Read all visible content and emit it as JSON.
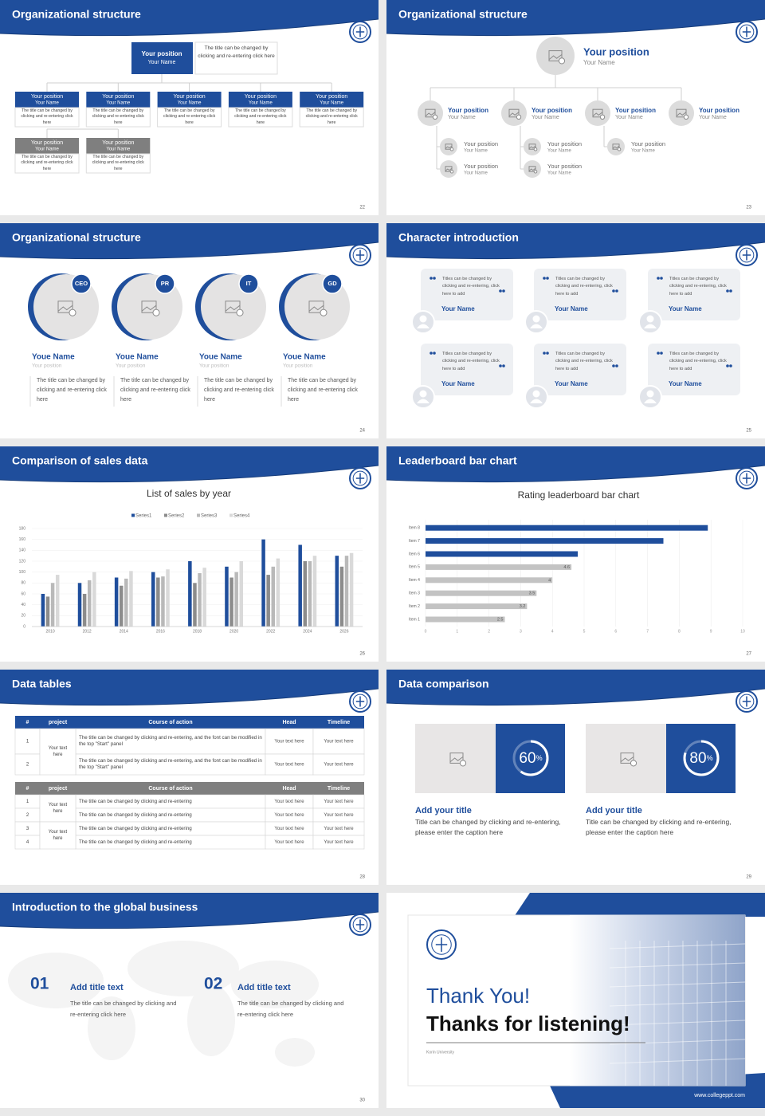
{
  "slides": [
    {
      "title": "Organizational structure",
      "page": "22",
      "top": {
        "position": "Your position",
        "name": "Your Name",
        "note": "The title can be changed by clicking and re-entering click here"
      },
      "row1": [
        {
          "position": "Your position",
          "name": "Your Name",
          "text": "The title can be changed by clicking and re-entering click here"
        },
        {
          "position": "Your position",
          "name": "Your Name",
          "text": "The title can be changed by clicking and re-entering click here"
        },
        {
          "position": "Your position",
          "name": "Your Name",
          "text": "The title can be changed by clicking and re-entering click here"
        },
        {
          "position": "Your position",
          "name": "Your Name",
          "text": "The title can be changed by clicking and re-entering click here"
        },
        {
          "position": "Your position",
          "name": "Your Name",
          "text": "The title can be changed by clicking and re-entering click here"
        }
      ],
      "row2": [
        {
          "position": "Your position",
          "name": "Your Name",
          "text": "The title can be changed by clicking and re-entering click here"
        },
        {
          "position": "Your position",
          "name": "Your Name",
          "text": "The title can be changed by clicking and re-entering click here"
        }
      ]
    },
    {
      "title": "Organizational structure",
      "page": "23",
      "top": {
        "position": "Your position",
        "name": "Your Name"
      },
      "level2": [
        {
          "position": "Your position",
          "name": "Your Name"
        },
        {
          "position": "Your position",
          "name": "Your Name"
        },
        {
          "position": "Your position",
          "name": "Your Name"
        },
        {
          "position": "Your position",
          "name": "Your Name"
        }
      ],
      "level3": [
        {
          "position": "Your position",
          "name": "Your Name"
        },
        {
          "position": "Your position",
          "name": "Your Name"
        },
        {
          "position": "Your position",
          "name": "Your Name"
        },
        {
          "position": "Your position",
          "name": "Your Name"
        },
        {
          "position": "Your position",
          "name": "Your Name"
        }
      ]
    },
    {
      "title": "Organizational structure",
      "page": "24",
      "people": [
        {
          "badge": "CEO",
          "name": "Youe Name",
          "position": "Your position",
          "text": "The title can be changed by clicking and re-entering click here"
        },
        {
          "badge": "PR",
          "name": "Youe Name",
          "position": "Your position",
          "text": "The title can be changed by clicking and re-entering click here"
        },
        {
          "badge": "IT",
          "name": "Youe Name",
          "position": "Your position",
          "text": "The title can be changed by clicking and re-entering click here"
        },
        {
          "badge": "GD",
          "name": "Youe Name",
          "position": "Your position",
          "text": "The title can be changed by clicking and re-entering click here"
        }
      ]
    },
    {
      "title": "Character introduction",
      "page": "25",
      "cards": [
        {
          "quote": "Titles can be changed by clicking and re-entering, click here to add",
          "name": "Your Name"
        },
        {
          "quote": "Titles can be changed by clicking and re-entering, click here to add",
          "name": "Your Name"
        },
        {
          "quote": "Titles can be changed by clicking and re-entering, click here to add",
          "name": "Your Name"
        },
        {
          "quote": "Titles can be changed by clicking and re-entering, click here to add",
          "name": "Your Name"
        },
        {
          "quote": "Titles can be changed by clicking and re-entering, click here to add",
          "name": "Your Name"
        },
        {
          "quote": "Titles can be changed by clicking and re-entering, click here to add",
          "name": "Your Name"
        }
      ]
    },
    {
      "title": "Comparison of sales data",
      "page": "26",
      "chart": {
        "type": "bar",
        "title": "List of sales by year",
        "categories": [
          "2010",
          "2012",
          "2014",
          "2016",
          "2018",
          "2020",
          "2022",
          "2024",
          "2026"
        ],
        "series": [
          {
            "name": "Series1",
            "color": "#1f4e9c",
            "values": [
              60,
              80,
              90,
              100,
              120,
              110,
              160,
              150,
              130
            ]
          },
          {
            "name": "Series2",
            "color": "#8c8c8c",
            "values": [
              55,
              60,
              75,
              90,
              80,
              90,
              95,
              120,
              110
            ]
          },
          {
            "name": "Series3",
            "color": "#b9b9b9",
            "values": [
              80,
              85,
              88,
              92,
              98,
              100,
              110,
              120,
              130
            ]
          },
          {
            "name": "Series4",
            "color": "#d9d9d9",
            "values": [
              95,
              100,
              102,
              105,
              108,
              120,
              125,
              130,
              135
            ]
          }
        ],
        "ylim": [
          0,
          180
        ],
        "yticks": [
          0,
          20,
          40,
          60,
          80,
          100,
          120,
          140,
          160,
          180
        ]
      }
    },
    {
      "title": "Leaderboard bar chart",
      "page": "27",
      "chart": {
        "type": "barh",
        "title": "Rating leaderboard bar chart",
        "categories": [
          "Item 1",
          "Item 2",
          "Item 3",
          "Item 4",
          "Item 5",
          "Item 6",
          "Item 7",
          "Item 8"
        ],
        "values": [
          2.5,
          3.2,
          3.5,
          4,
          4.6,
          4.8,
          7.5,
          8.9
        ],
        "colors": [
          "#c3c3c3",
          "#c3c3c3",
          "#c3c3c3",
          "#c3c3c3",
          "#c3c3c3",
          "#1f4e9c",
          "#1f4e9c",
          "#1f4e9c"
        ],
        "show_labels": [
          true,
          true,
          true,
          true,
          true,
          false,
          false,
          false
        ],
        "xlim": [
          0,
          10
        ],
        "xticks": [
          0,
          1,
          2,
          3,
          4,
          5,
          6,
          7,
          8,
          9,
          10
        ],
        "grid": true
      }
    },
    {
      "title": "Data tables",
      "page": "28",
      "table1": {
        "header_color": "#1f4e9c",
        "header": [
          "#",
          "project",
          "Course of action",
          "Head",
          "Timeline"
        ],
        "groups": [
          {
            "project": "Your text here",
            "rows": [
              [
                "1",
                "The title can be changed by clicking and re-entering, and the font can be modified in the top \"Start\" panel",
                "Your text here",
                "Your text here"
              ],
              [
                "2",
                "The title can be changed by clicking and re-entering, and the font can be modified in the top \"Start\" panel",
                "Your text here",
                "Your text here"
              ]
            ]
          }
        ]
      },
      "table2": {
        "header_color": "#7f7f7f",
        "header": [
          "#",
          "project",
          "Course of action",
          "Head",
          "Timeline"
        ],
        "groups": [
          {
            "project": "Your text here",
            "rows": [
              [
                "1",
                "The title can be changed by clicking and re-entering",
                "Your text here",
                "Your text here"
              ],
              [
                "2",
                "The title can be changed by clicking and re-entering",
                "Your text here",
                "Your text here"
              ]
            ]
          },
          {
            "project": "Your text here",
            "rows": [
              [
                "3",
                "The title can be changed by clicking and re-entering",
                "Your text here",
                "Your text here"
              ],
              [
                "4",
                "The title can be changed by clicking and re-entering",
                "Your text here",
                "Your text here"
              ]
            ]
          }
        ]
      }
    },
    {
      "title": "Data comparison",
      "page": "29",
      "items": [
        {
          "value": 60,
          "unit": "%",
          "heading": "Add your title",
          "text": "Title can be changed by clicking and re-entering, please enter the caption here"
        },
        {
          "value": 80,
          "unit": "%",
          "heading": "Add your title",
          "text": "Title can be changed by clicking and re-entering, please enter the caption here"
        }
      ]
    },
    {
      "title": "Introduction to the global business",
      "page": "30",
      "items": [
        {
          "number": "01",
          "heading": "Add title text",
          "text": "The title can be changed by clicking and re-entering click here"
        },
        {
          "number": "02",
          "heading": "Add title text",
          "text": "The title can be changed by clicking and re-entering click here"
        }
      ]
    },
    {
      "thanks": "Thank You!",
      "subtitle": "Thanks for listening!",
      "school": "Korin University",
      "url": "www.collegeppt.com"
    }
  ]
}
